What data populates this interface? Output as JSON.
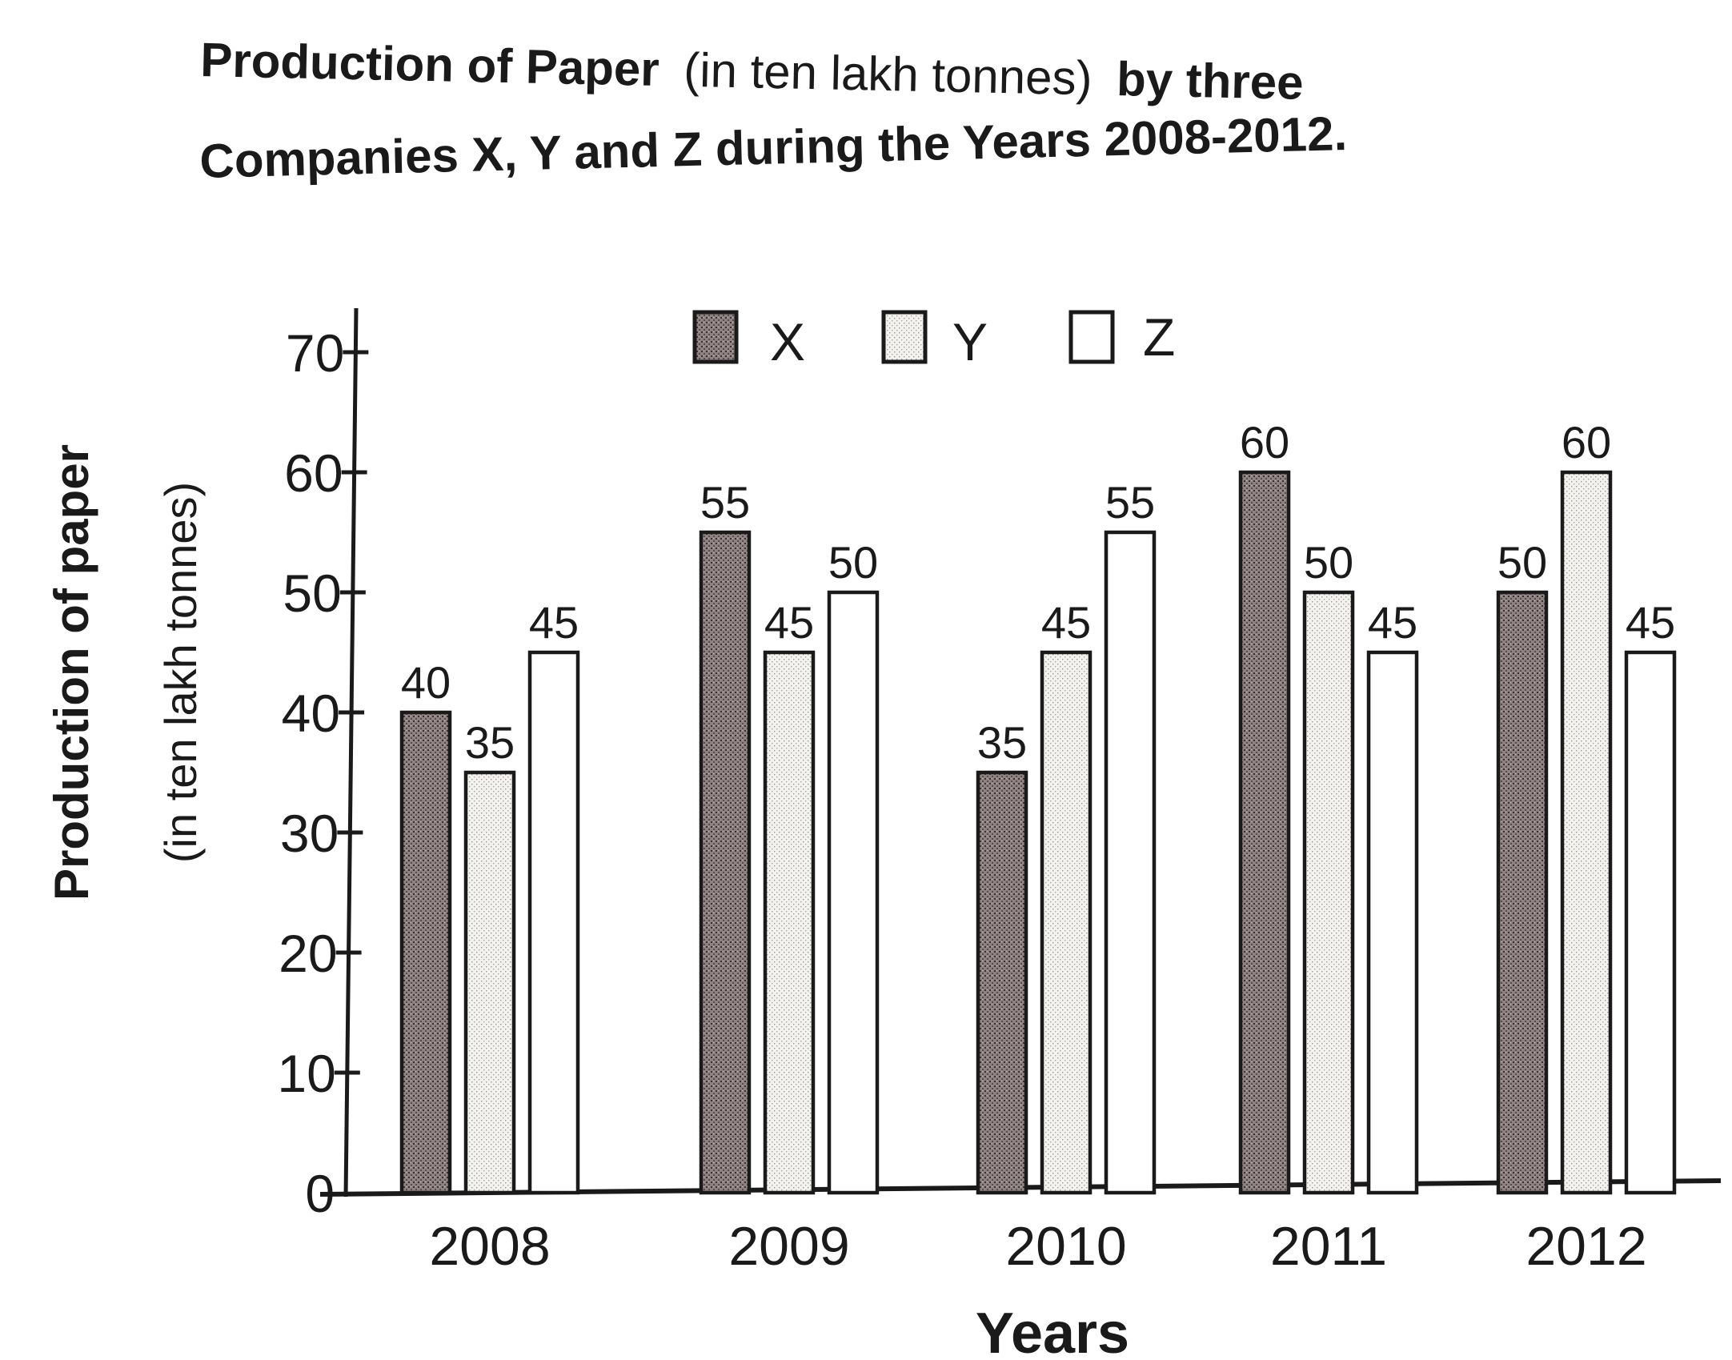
{
  "title": {
    "line1_a": "Production of Paper",
    "line1_b": "(in ten lakh tonnes)",
    "line1_c": "by three",
    "line2": "Companies X, Y and Z during the Years 2008-2012."
  },
  "chart_data": {
    "type": "bar",
    "categories": [
      "2008",
      "2009",
      "2010",
      "2011",
      "2012"
    ],
    "series": [
      {
        "name": "X",
        "values": [
          40,
          55,
          35,
          60,
          50
        ]
      },
      {
        "name": "Y",
        "values": [
          35,
          45,
          45,
          50,
          60
        ]
      },
      {
        "name": "Z",
        "values": [
          45,
          50,
          55,
          45,
          45
        ]
      }
    ],
    "data_labels": [
      [
        "40",
        "55",
        "35",
        "60",
        "50"
      ],
      [
        "35",
        "45",
        "45",
        "50",
        "60"
      ],
      [
        "45",
        "50",
        "55",
        "45",
        "45"
      ]
    ],
    "ylabel_line1": "Production of paper",
    "ylabel_line2": "(in ten lakh tonnes)",
    "xlabel": "Years",
    "ylim": [
      0,
      70
    ],
    "yticks": [
      "0",
      "10",
      "20",
      "30",
      "40",
      "50",
      "60",
      "70"
    ],
    "legend_placement": "top-center",
    "grid": false,
    "colors": {
      "X": "#8c8080",
      "Y": "#ecebe8",
      "Z": "#ffffff",
      "ink": "#1a1a1a"
    }
  }
}
